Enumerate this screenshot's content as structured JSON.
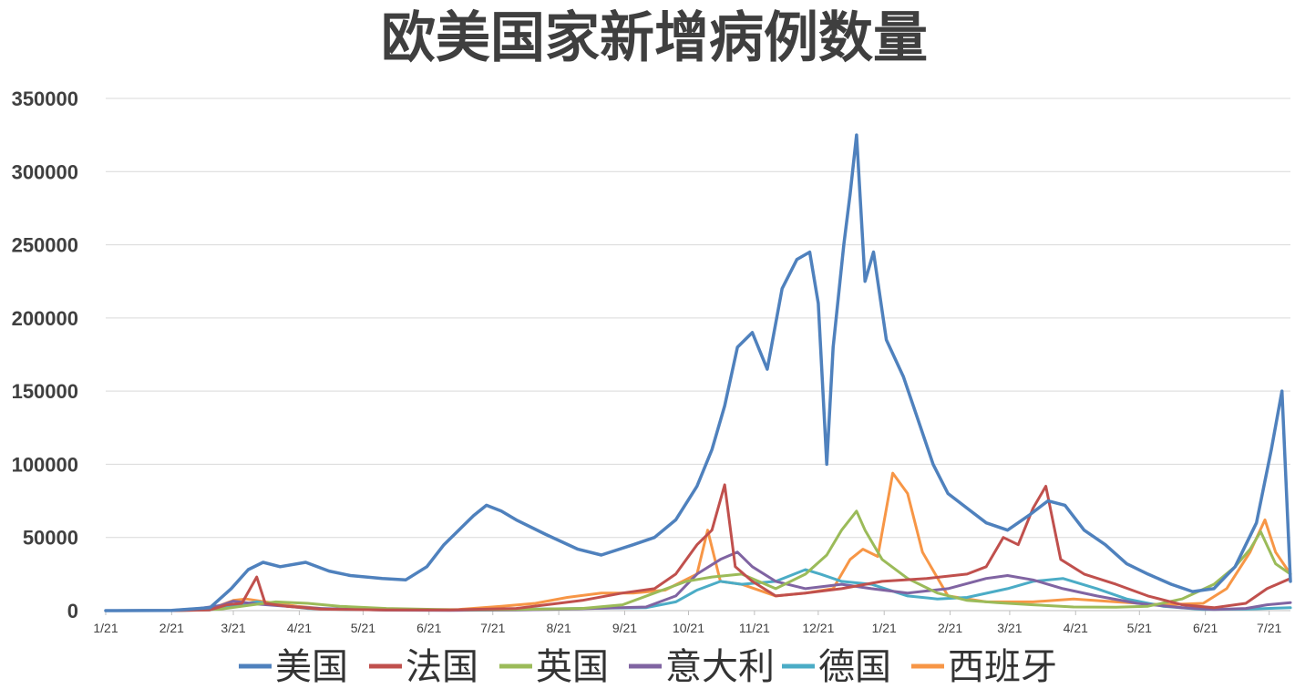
{
  "chart_data": {
    "type": "line",
    "title": "欧美国家新增病例数量",
    "xlabel": "",
    "ylabel": "",
    "ylim": [
      0,
      350000
    ],
    "yticks": [
      0,
      50000,
      100000,
      150000,
      200000,
      250000,
      300000,
      350000
    ],
    "grid": "horizontal",
    "legend": "bottom",
    "x_start": "2020-01-21",
    "x_end": "2021-07-31",
    "categories": [
      "1/21",
      "2/21",
      "3/21",
      "4/21",
      "5/21",
      "6/21",
      "7/21",
      "8/21",
      "9/21",
      "10/21",
      "11/21",
      "12/21",
      "1/21",
      "2/21",
      "3/21",
      "4/21",
      "5/21",
      "6/21",
      "7/21"
    ],
    "series": [
      {
        "name": "美国",
        "color": "#4f81bd",
        "points": [
          [
            "2020-01-21",
            0
          ],
          [
            "2020-02-21",
            100
          ],
          [
            "2020-03-10",
            2000
          ],
          [
            "2020-03-20",
            15000
          ],
          [
            "2020-03-28",
            28000
          ],
          [
            "2020-04-04",
            33000
          ],
          [
            "2020-04-12",
            30000
          ],
          [
            "2020-04-24",
            33000
          ],
          [
            "2020-05-05",
            27000
          ],
          [
            "2020-05-15",
            24000
          ],
          [
            "2020-05-30",
            22000
          ],
          [
            "2020-06-10",
            21000
          ],
          [
            "2020-06-20",
            30000
          ],
          [
            "2020-06-28",
            45000
          ],
          [
            "2020-07-05",
            55000
          ],
          [
            "2020-07-12",
            65000
          ],
          [
            "2020-07-18",
            72000
          ],
          [
            "2020-07-25",
            68000
          ],
          [
            "2020-08-01",
            62000
          ],
          [
            "2020-08-15",
            52000
          ],
          [
            "2020-08-30",
            42000
          ],
          [
            "2020-09-10",
            38000
          ],
          [
            "2020-09-25",
            45000
          ],
          [
            "2020-10-05",
            50000
          ],
          [
            "2020-10-15",
            62000
          ],
          [
            "2020-10-25",
            85000
          ],
          [
            "2020-11-01",
            110000
          ],
          [
            "2020-11-07",
            140000
          ],
          [
            "2020-11-13",
            180000
          ],
          [
            "2020-11-20",
            190000
          ],
          [
            "2020-11-27",
            165000
          ],
          [
            "2020-12-04",
            220000
          ],
          [
            "2020-12-11",
            240000
          ],
          [
            "2020-12-17",
            245000
          ],
          [
            "2020-12-21",
            210000
          ],
          [
            "2020-12-25",
            100000
          ],
          [
            "2020-12-28",
            180000
          ],
          [
            "2021-01-02",
            250000
          ],
          [
            "2021-01-05",
            285000
          ],
          [
            "2021-01-08",
            325000
          ],
          [
            "2021-01-12",
            225000
          ],
          [
            "2021-01-16",
            245000
          ],
          [
            "2021-01-22",
            185000
          ],
          [
            "2021-01-30",
            160000
          ],
          [
            "2021-02-06",
            130000
          ],
          [
            "2021-02-13",
            100000
          ],
          [
            "2021-02-20",
            80000
          ],
          [
            "2021-03-01",
            70000
          ],
          [
            "2021-03-10",
            60000
          ],
          [
            "2021-03-20",
            55000
          ],
          [
            "2021-03-30",
            65000
          ],
          [
            "2021-04-08",
            75000
          ],
          [
            "2021-04-16",
            72000
          ],
          [
            "2021-04-25",
            55000
          ],
          [
            "2021-05-05",
            45000
          ],
          [
            "2021-05-15",
            32000
          ],
          [
            "2021-05-25",
            25000
          ],
          [
            "2021-06-05",
            18000
          ],
          [
            "2021-06-15",
            13000
          ],
          [
            "2021-06-25",
            15000
          ],
          [
            "2021-07-05",
            30000
          ],
          [
            "2021-07-15",
            60000
          ],
          [
            "2021-07-22",
            110000
          ],
          [
            "2021-07-27",
            150000
          ],
          [
            "2021-07-31",
            20000
          ]
        ]
      },
      {
        "name": "法国",
        "color": "#c0504d",
        "points": [
          [
            "2020-01-21",
            0
          ],
          [
            "2020-02-21",
            0
          ],
          [
            "2020-03-10",
            500
          ],
          [
            "2020-03-18",
            4000
          ],
          [
            "2020-03-25",
            5000
          ],
          [
            "2020-04-01",
            23000
          ],
          [
            "2020-04-05",
            5000
          ],
          [
            "2020-04-15",
            3000
          ],
          [
            "2020-05-01",
            1000
          ],
          [
            "2020-06-01",
            500
          ],
          [
            "2020-07-01",
            500
          ],
          [
            "2020-08-01",
            1500
          ],
          [
            "2020-09-01",
            7000
          ],
          [
            "2020-09-20",
            12000
          ],
          [
            "2020-10-05",
            15000
          ],
          [
            "2020-10-15",
            25000
          ],
          [
            "2020-10-25",
            45000
          ],
          [
            "2020-11-01",
            55000
          ],
          [
            "2020-11-07",
            86000
          ],
          [
            "2020-11-12",
            30000
          ],
          [
            "2020-11-20",
            20000
          ],
          [
            "2020-12-01",
            10000
          ],
          [
            "2020-12-15",
            12000
          ],
          [
            "2021-01-01",
            15000
          ],
          [
            "2021-01-20",
            20000
          ],
          [
            "2021-02-10",
            22000
          ],
          [
            "2021-03-01",
            25000
          ],
          [
            "2021-03-10",
            30000
          ],
          [
            "2021-03-18",
            50000
          ],
          [
            "2021-03-25",
            45000
          ],
          [
            "2021-04-01",
            70000
          ],
          [
            "2021-04-07",
            85000
          ],
          [
            "2021-04-14",
            35000
          ],
          [
            "2021-04-25",
            25000
          ],
          [
            "2021-05-10",
            18000
          ],
          [
            "2021-05-25",
            10000
          ],
          [
            "2021-06-10",
            4000
          ],
          [
            "2021-06-25",
            2000
          ],
          [
            "2021-07-10",
            5000
          ],
          [
            "2021-07-20",
            15000
          ],
          [
            "2021-07-31",
            22000
          ]
        ]
      },
      {
        "name": "英国",
        "color": "#9bbb59",
        "points": [
          [
            "2020-01-21",
            0
          ],
          [
            "2020-02-21",
            0
          ],
          [
            "2020-03-15",
            1000
          ],
          [
            "2020-03-30",
            4000
          ],
          [
            "2020-04-10",
            6000
          ],
          [
            "2020-04-25",
            5000
          ],
          [
            "2020-05-10",
            3000
          ],
          [
            "2020-06-01",
            1500
          ],
          [
            "2020-07-01",
            600
          ],
          [
            "2020-08-01",
            800
          ],
          [
            "2020-09-01",
            1500
          ],
          [
            "2020-09-20",
            4000
          ],
          [
            "2020-10-05",
            12000
          ],
          [
            "2020-10-20",
            20000
          ],
          [
            "2020-11-01",
            23000
          ],
          [
            "2020-11-15",
            25000
          ],
          [
            "2020-12-01",
            15000
          ],
          [
            "2020-12-15",
            25000
          ],
          [
            "2020-12-25",
            38000
          ],
          [
            "2021-01-01",
            55000
          ],
          [
            "2021-01-08",
            68000
          ],
          [
            "2021-01-12",
            55000
          ],
          [
            "2021-01-20",
            35000
          ],
          [
            "2021-02-01",
            22000
          ],
          [
            "2021-02-15",
            12000
          ],
          [
            "2021-03-01",
            7000
          ],
          [
            "2021-03-15",
            5500
          ],
          [
            "2021-04-01",
            4000
          ],
          [
            "2021-04-20",
            2500
          ],
          [
            "2021-05-10",
            2300
          ],
          [
            "2021-05-25",
            3000
          ],
          [
            "2021-06-10",
            8000
          ],
          [
            "2021-06-25",
            18000
          ],
          [
            "2021-07-05",
            30000
          ],
          [
            "2021-07-12",
            42000
          ],
          [
            "2021-07-17",
            54000
          ],
          [
            "2021-07-24",
            32000
          ],
          [
            "2021-07-31",
            25000
          ]
        ]
      },
      {
        "name": "意大利",
        "color": "#8064a2",
        "points": [
          [
            "2020-01-21",
            0
          ],
          [
            "2020-02-21",
            100
          ],
          [
            "2020-03-05",
            1500
          ],
          [
            "2020-03-15",
            3500
          ],
          [
            "2020-03-21",
            6500
          ],
          [
            "2020-04-01",
            4500
          ],
          [
            "2020-04-15",
            3000
          ],
          [
            "2020-05-01",
            1500
          ],
          [
            "2020-06-01",
            300
          ],
          [
            "2020-07-01",
            200
          ],
          [
            "2020-08-01",
            400
          ],
          [
            "2020-09-01",
            1300
          ],
          [
            "2020-10-01",
            2500
          ],
          [
            "2020-10-15",
            10000
          ],
          [
            "2020-10-25",
            25000
          ],
          [
            "2020-11-05",
            35000
          ],
          [
            "2020-11-13",
            40000
          ],
          [
            "2020-11-20",
            30000
          ],
          [
            "2020-12-01",
            20000
          ],
          [
            "2020-12-15",
            15000
          ],
          [
            "2021-01-01",
            18000
          ],
          [
            "2021-01-15",
            15000
          ],
          [
            "2021-02-01",
            12000
          ],
          [
            "2021-02-20",
            15000
          ],
          [
            "2021-03-10",
            22000
          ],
          [
            "2021-03-20",
            24000
          ],
          [
            "2021-04-01",
            21000
          ],
          [
            "2021-04-15",
            15000
          ],
          [
            "2021-05-01",
            10000
          ],
          [
            "2021-05-20",
            5000
          ],
          [
            "2021-06-10",
            2000
          ],
          [
            "2021-06-25",
            800
          ],
          [
            "2021-07-10",
            1500
          ],
          [
            "2021-07-20",
            4000
          ],
          [
            "2021-07-31",
            5500
          ]
        ]
      },
      {
        "name": "德国",
        "color": "#4bacc6",
        "points": [
          [
            "2020-01-21",
            0
          ],
          [
            "2020-02-21",
            0
          ],
          [
            "2020-03-10",
            500
          ],
          [
            "2020-03-20",
            3000
          ],
          [
            "2020-04-01",
            6000
          ],
          [
            "2020-04-10",
            4000
          ],
          [
            "2020-04-25",
            1500
          ],
          [
            "2020-05-15",
            700
          ],
          [
            "2020-06-15",
            400
          ],
          [
            "2020-07-15",
            500
          ],
          [
            "2020-08-15",
            1200
          ],
          [
            "2020-09-15",
            1800
          ],
          [
            "2020-10-01",
            2000
          ],
          [
            "2020-10-15",
            6000
          ],
          [
            "2020-10-25",
            14000
          ],
          [
            "2020-11-05",
            20000
          ],
          [
            "2020-11-15",
            18000
          ],
          [
            "2020-12-01",
            20000
          ],
          [
            "2020-12-15",
            28000
          ],
          [
            "2020-12-22",
            25000
          ],
          [
            "2021-01-01",
            20000
          ],
          [
            "2021-01-15",
            18000
          ],
          [
            "2021-02-01",
            10000
          ],
          [
            "2021-02-15",
            8000
          ],
          [
            "2021-03-01",
            9000
          ],
          [
            "2021-03-20",
            15000
          ],
          [
            "2021-04-01",
            20000
          ],
          [
            "2021-04-15",
            22000
          ],
          [
            "2021-05-01",
            15000
          ],
          [
            "2021-05-15",
            8000
          ],
          [
            "2021-06-01",
            3000
          ],
          [
            "2021-06-20",
            800
          ],
          [
            "2021-07-10",
            1000
          ],
          [
            "2021-07-31",
            2000
          ]
        ]
      },
      {
        "name": "西班牙",
        "color": "#f79646",
        "points": [
          [
            "2020-01-21",
            0
          ],
          [
            "2020-02-21",
            0
          ],
          [
            "2020-03-10",
            1000
          ],
          [
            "2020-03-21",
            7000
          ],
          [
            "2020-03-27",
            8000
          ],
          [
            "2020-04-05",
            6000
          ],
          [
            "2020-04-20",
            3000
          ],
          [
            "2020-05-05",
            1000
          ],
          [
            "2020-06-05",
            400
          ],
          [
            "2020-07-05",
            800
          ],
          [
            "2020-07-25",
            3000
          ],
          [
            "2020-08-10",
            5000
          ],
          [
            "2020-08-25",
            9000
          ],
          [
            "2020-09-10",
            12000
          ],
          [
            "2020-09-25",
            12000
          ],
          [
            "2020-10-10",
            14000
          ],
          [
            "2020-10-25",
            25000
          ],
          [
            "2020-10-30",
            55000
          ],
          [
            "2020-11-05",
            20000
          ],
          [
            "2020-11-15",
            18000
          ],
          [
            "2020-12-01",
            10000
          ],
          [
            "2020-12-15",
            12000
          ],
          [
            "2020-12-28",
            15000
          ],
          [
            "2021-01-05",
            35000
          ],
          [
            "2021-01-11",
            42000
          ],
          [
            "2021-01-18",
            37000
          ],
          [
            "2021-01-25",
            94000
          ],
          [
            "2021-02-01",
            80000
          ],
          [
            "2021-02-08",
            40000
          ],
          [
            "2021-02-20",
            10000
          ],
          [
            "2021-03-10",
            6000
          ],
          [
            "2021-04-01",
            6000
          ],
          [
            "2021-04-20",
            8000
          ],
          [
            "2021-05-10",
            6000
          ],
          [
            "2021-06-01",
            4000
          ],
          [
            "2021-06-20",
            5000
          ],
          [
            "2021-07-01",
            15000
          ],
          [
            "2021-07-12",
            40000
          ],
          [
            "2021-07-19",
            62000
          ],
          [
            "2021-07-24",
            40000
          ],
          [
            "2021-07-31",
            25000
          ]
        ]
      }
    ]
  }
}
